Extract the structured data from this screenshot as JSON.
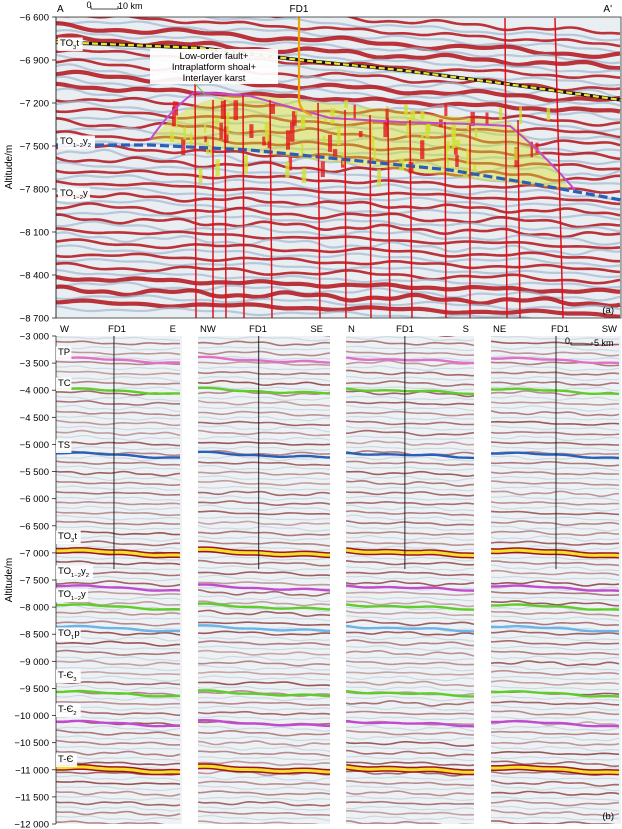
{
  "panel_a": {
    "tag": "(a)",
    "ylabel": "Altitude/m",
    "ticks": [
      "−6 600",
      "−6 900",
      "−7 200",
      "−7 500",
      "−7 800",
      "−8 100",
      "−8 400",
      "−8 700"
    ],
    "left_end": "A",
    "right_end": "A'",
    "well": "FD1",
    "scale": {
      "zero": "0",
      "length": "10 km"
    },
    "annotation": [
      "Low-order fault+",
      "Intraplatform shoal+",
      "Interlayer karst"
    ],
    "horizons": [
      {
        "base": "TO",
        "sub": "3",
        "suffix": "t"
      },
      {
        "base": "TO",
        "sub": "1−2",
        "suffix": "y",
        "sub2": "2"
      },
      {
        "base": "TO",
        "sub": "1−2",
        "suffix": "y"
      }
    ]
  },
  "panel_b": {
    "tag": "(b)",
    "ylabel": "Altitude/m",
    "ticks": [
      "−3 000",
      "−3 500",
      "−4 000",
      "−4 500",
      "−5 000",
      "−5 500",
      "−6 000",
      "−6 500",
      "−7 000",
      "−7 500",
      "−8 000",
      "−8 500",
      "−9 000",
      "−9 500",
      "−10 000",
      "−10 500",
      "−11 000",
      "−11 500",
      "−12 000"
    ],
    "sections": [
      {
        "left": "W",
        "well": "FD1",
        "right": "E"
      },
      {
        "left": "NW",
        "well": "FD1",
        "right": "SE"
      },
      {
        "left": "N",
        "well": "FD1",
        "right": "S"
      },
      {
        "left": "NE",
        "well": "FD1",
        "right": "SW"
      }
    ],
    "scale": {
      "zero": "0",
      "length": "5 km"
    },
    "horizons": [
      {
        "base": "TP",
        "sub": "",
        "suffix": ""
      },
      {
        "base": "TC",
        "sub": "",
        "suffix": ""
      },
      {
        "base": "TS",
        "sub": "",
        "suffix": ""
      },
      {
        "base": "TO",
        "sub": "3",
        "suffix": "t"
      },
      {
        "base": "TO",
        "sub": "1−2",
        "suffix": "y",
        "sub2": "2"
      },
      {
        "base": "TO",
        "sub": "1−2",
        "suffix": "y"
      },
      {
        "base": "TO",
        "sub": "1",
        "suffix": "p"
      },
      {
        "base": "T-Є",
        "sub": "3",
        "suffix": ""
      },
      {
        "base": "T-Є",
        "sub": "2",
        "suffix": ""
      },
      {
        "base": "T-Є",
        "sub": "",
        "suffix": ""
      }
    ]
  },
  "colors": {
    "peak_red": "#b3121a",
    "trough_blue": "#9fb8cf",
    "fault_red": "#e0101a",
    "horizon_yellow": "#f3e02a",
    "horizon_blue": "#2a5fb8",
    "horizon_magenta": "#c24ad0",
    "horizon_green": "#5fcc2a",
    "horizon_pink": "#e070c8",
    "horizon_lightblue": "#6ab4e8",
    "well_orange": "#f0a400",
    "anomaly_yellow": "#d8e02a"
  }
}
